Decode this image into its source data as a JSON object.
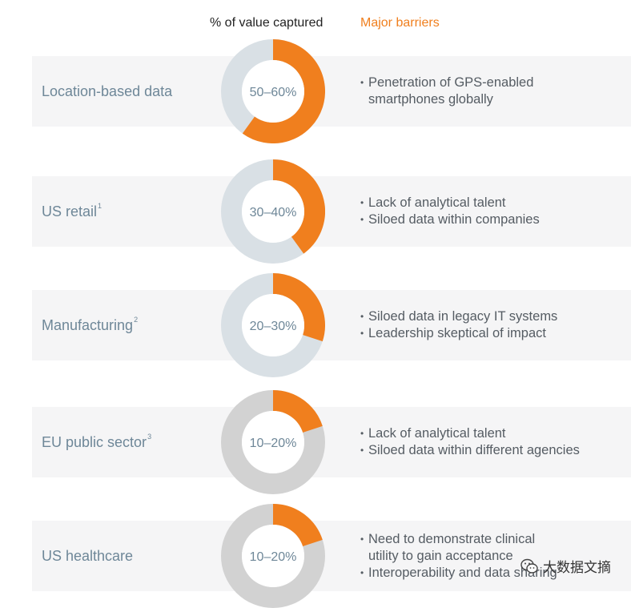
{
  "header": {
    "value_label": "% of value captured",
    "barriers_label": "Major barriers"
  },
  "colors": {
    "accent": "#f07f1e",
    "ring_light": "#d9e0e5",
    "ring_gray": "#d2d2d2",
    "label": "#6e8798"
  },
  "chart_data": {
    "type": "pie",
    "title": "",
    "rows": [
      {
        "sector": "Location-based data",
        "footnote": "",
        "range_label": "50–60%",
        "value_low": 50,
        "value_high": 60,
        "ring_color": "light",
        "barriers": [
          "Penetration of GPS-enabled\nsmartphones globally"
        ]
      },
      {
        "sector": "US retail",
        "footnote": "1",
        "range_label": "30–40%",
        "value_low": 30,
        "value_high": 40,
        "ring_color": "light",
        "barriers": [
          "Lack of analytical talent",
          "Siloed data within companies"
        ]
      },
      {
        "sector": "Manufacturing",
        "footnote": "2",
        "range_label": "20–30%",
        "value_low": 20,
        "value_high": 30,
        "ring_color": "light",
        "barriers": [
          "Siloed data in legacy IT systems",
          "Leadership skeptical of impact"
        ]
      },
      {
        "sector": "EU public sector",
        "footnote": "3",
        "range_label": "10–20%",
        "value_low": 10,
        "value_high": 20,
        "ring_color": "gray",
        "barriers": [
          "Lack of analytical talent",
          "Siloed data within different agencies"
        ]
      },
      {
        "sector": "US healthcare",
        "footnote": "",
        "range_label": "10–20%",
        "value_low": 10,
        "value_high": 20,
        "ring_color": "gray",
        "barriers": [
          "Need to demonstrate clinical\nutility to gain acceptance",
          "Interoperability and data sharing"
        ]
      }
    ]
  },
  "watermark": {
    "text": "大数据文摘",
    "icon": "wechat-icon"
  }
}
